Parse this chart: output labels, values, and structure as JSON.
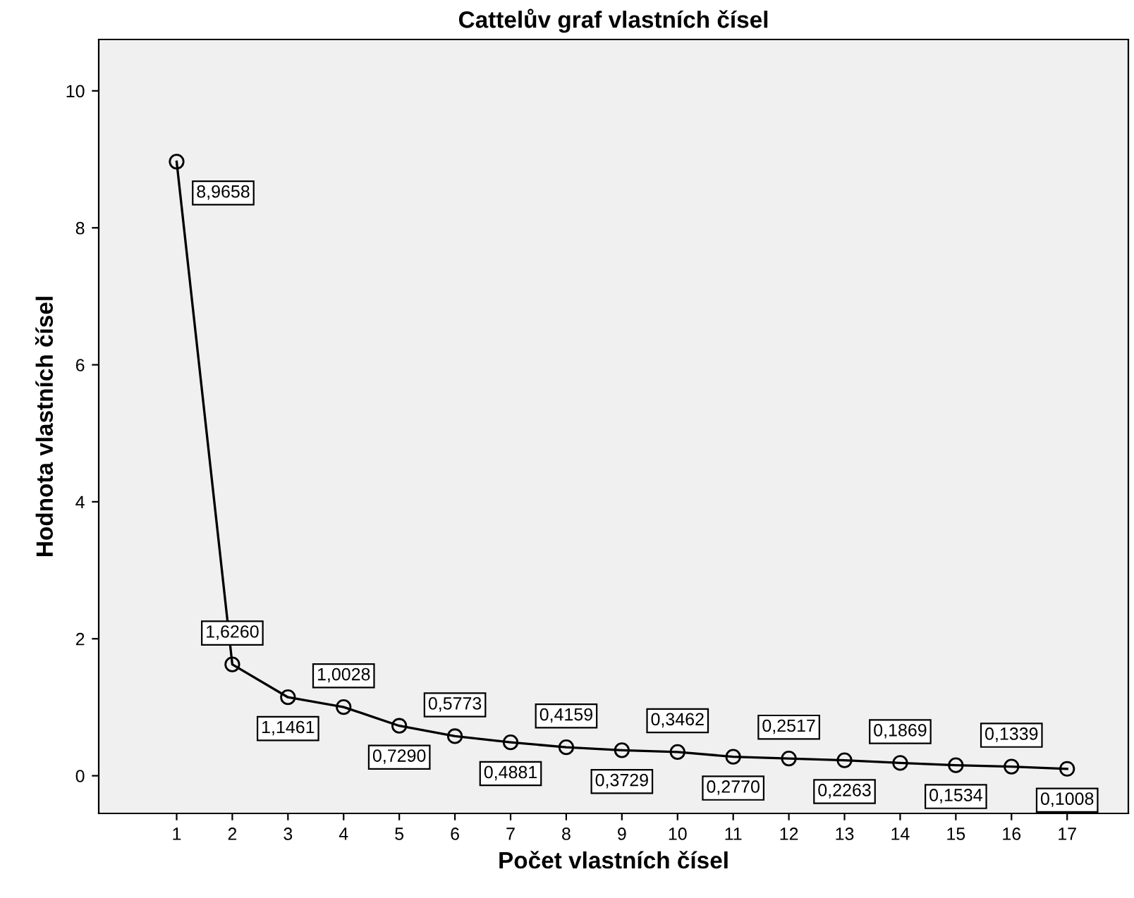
{
  "chart_data": {
    "type": "line",
    "title": "Cattelův graf vlastních čísel",
    "xlabel": "Počet vlastních čísel",
    "ylabel": "Hodnota vlastních čísel",
    "x": [
      1,
      2,
      3,
      4,
      5,
      6,
      7,
      8,
      9,
      10,
      11,
      12,
      13,
      14,
      15,
      16,
      17
    ],
    "series": [
      {
        "color": "#000000",
        "values": [
          8.9658,
          1.626,
          1.1461,
          1.0028,
          0.729,
          0.5773,
          0.4881,
          0.4159,
          0.3729,
          0.3462,
          0.277,
          0.2517,
          0.2263,
          0.1869,
          0.1534,
          0.1339,
          0.1008
        ],
        "value_labels": [
          "8,9658",
          "1,6260",
          "1,1461",
          "1,0028",
          "0,7290",
          "0,5773",
          "0,4881",
          "0,4159",
          "0,3729",
          "0,3462",
          "0,2770",
          "0,2517",
          "0,2263",
          "0,1869",
          "0,1534",
          "0,1339",
          "0,1008"
        ]
      }
    ],
    "xlim": [
      -0.4,
      18.1
    ],
    "xticks": [
      1,
      2,
      3,
      4,
      5,
      6,
      7,
      8,
      9,
      10,
      11,
      12,
      13,
      14,
      15,
      16,
      17
    ],
    "ylim": [
      -0.55,
      10.75
    ],
    "yticks": [
      0,
      2,
      4,
      6,
      8,
      10
    ],
    "marker": "circle",
    "line_style": "solid",
    "grid": false
  }
}
